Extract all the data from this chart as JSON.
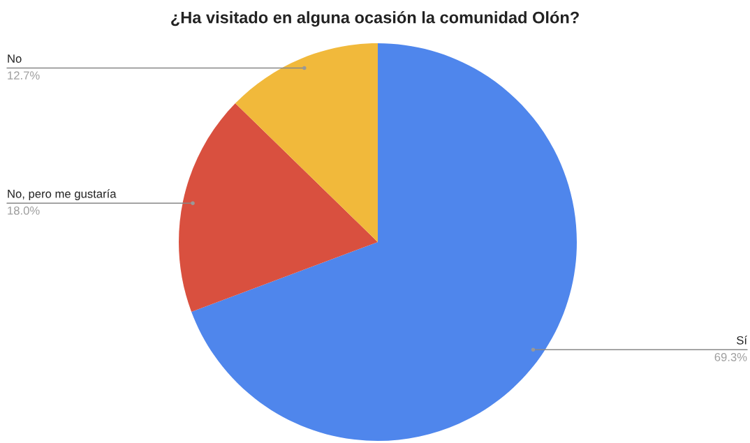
{
  "chart_data": {
    "type": "pie",
    "title": "¿Ha visitado en alguna ocasión la comunidad Olón?",
    "categories": [
      "Sí",
      "No, pero me gustaría",
      "No"
    ],
    "values": [
      69.3,
      18.0,
      12.7
    ],
    "value_labels": [
      "69.3%",
      "18.0%",
      "12.7%"
    ],
    "colors": [
      "#4f86ec",
      "#d9503f",
      "#f1b93b"
    ],
    "legend": false
  }
}
